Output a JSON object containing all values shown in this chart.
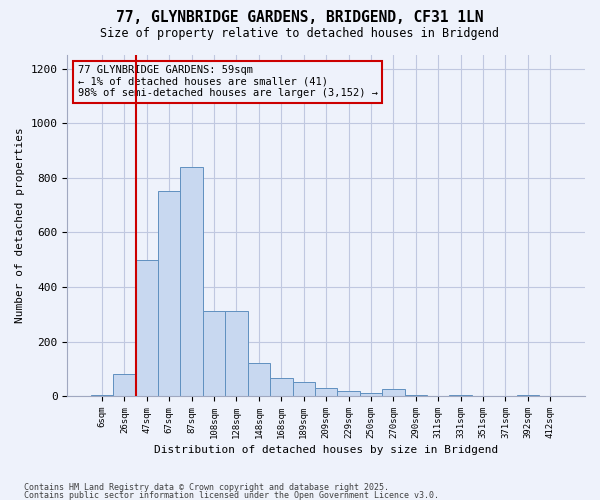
{
  "title_line1": "77, GLYNBRIDGE GARDENS, BRIDGEND, CF31 1LN",
  "title_line2": "Size of property relative to detached houses in Bridgend",
  "xlabel": "Distribution of detached houses by size in Bridgend",
  "ylabel": "Number of detached properties",
  "annotation_lines": [
    "77 GLYNBRIDGE GARDENS: 59sqm",
    "← 1% of detached houses are smaller (41)",
    "98% of semi-detached houses are larger (3,152) →"
  ],
  "bin_labels": [
    "6sqm",
    "26sqm",
    "47sqm",
    "67sqm",
    "87sqm",
    "108sqm",
    "128sqm",
    "148sqm",
    "168sqm",
    "189sqm",
    "209sqm",
    "229sqm",
    "250sqm",
    "270sqm",
    "290sqm",
    "311sqm",
    "331sqm",
    "351sqm",
    "371sqm",
    "392sqm",
    "412sqm"
  ],
  "bar_values": [
    5,
    80,
    500,
    750,
    840,
    310,
    310,
    120,
    65,
    50,
    30,
    20,
    10,
    25,
    5,
    0,
    5,
    0,
    0,
    3,
    0
  ],
  "bar_color": "#c8d8f0",
  "bar_edge_color": "#6090c0",
  "vline_x": 1.5,
  "vline_color": "#cc0000",
  "annotation_box_color": "#cc0000",
  "background_color": "#eef2fb",
  "grid_color": "#c0c8e0",
  "footer_line1": "Contains HM Land Registry data © Crown copyright and database right 2025.",
  "footer_line2": "Contains public sector information licensed under the Open Government Licence v3.0.",
  "ylim": [
    0,
    1250
  ],
  "yticks": [
    0,
    200,
    400,
    600,
    800,
    1000,
    1200
  ]
}
